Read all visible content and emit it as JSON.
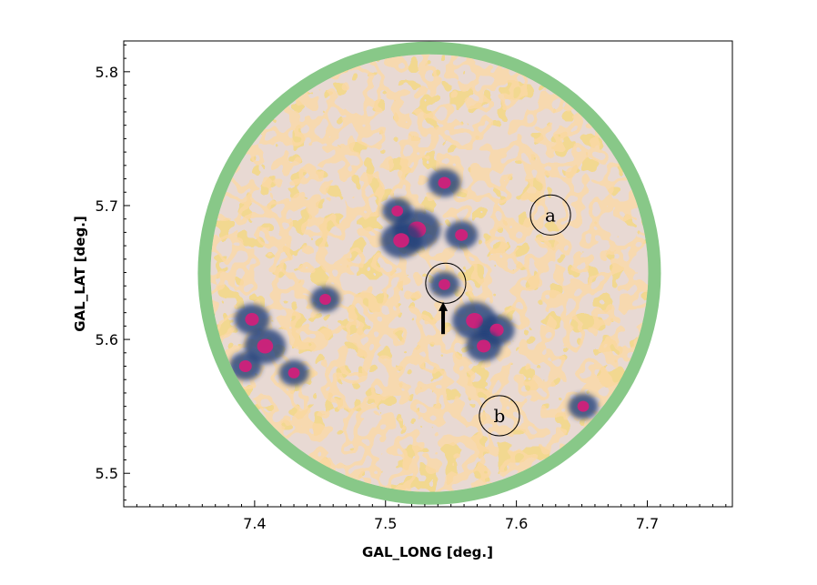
{
  "chart_data": {
    "type": "heatmap",
    "title": "",
    "xlabel": "GAL_LONG [deg.]",
    "ylabel": "GAL_LAT [deg.]",
    "xlim": [
      7.3,
      7.765
    ],
    "ylim": [
      5.475,
      5.823
    ],
    "x_ticks": [
      7.4,
      7.5,
      7.6,
      7.7
    ],
    "x_tick_labels": [
      "7.4",
      "7.5",
      "7.6",
      "7.7"
    ],
    "y_ticks": [
      5.5,
      5.6,
      5.7,
      5.8
    ],
    "y_tick_labels": [
      "5.5",
      "5.6",
      "5.7",
      "5.8"
    ],
    "map_center": [
      7.5335,
      5.6495
    ],
    "map_radius_deg": 0.173,
    "grid": false,
    "colors": {
      "rim": "#88c888",
      "background": "#f2d890",
      "low": "#c8b2d2",
      "mid": "#f5b060",
      "high": "#23407a",
      "peak": "#d0207a"
    },
    "peaks": [
      {
        "x": 7.524,
        "y": 5.682,
        "size": 1.0
      },
      {
        "x": 7.512,
        "y": 5.674,
        "size": 0.8
      },
      {
        "x": 7.558,
        "y": 5.678,
        "size": 0.5
      },
      {
        "x": 7.545,
        "y": 5.641,
        "size": 0.4
      },
      {
        "x": 7.568,
        "y": 5.614,
        "size": 0.9
      },
      {
        "x": 7.585,
        "y": 5.607,
        "size": 0.6
      },
      {
        "x": 7.575,
        "y": 5.595,
        "size": 0.6
      },
      {
        "x": 7.398,
        "y": 5.615,
        "size": 0.6
      },
      {
        "x": 7.408,
        "y": 5.595,
        "size": 0.8
      },
      {
        "x": 7.393,
        "y": 5.58,
        "size": 0.5
      },
      {
        "x": 7.43,
        "y": 5.575,
        "size": 0.4
      },
      {
        "x": 7.454,
        "y": 5.63,
        "size": 0.4
      },
      {
        "x": 7.545,
        "y": 5.717,
        "size": 0.5
      },
      {
        "x": 7.509,
        "y": 5.696,
        "size": 0.4
      },
      {
        "x": 7.651,
        "y": 5.55,
        "size": 0.4
      }
    ],
    "annotations": [
      {
        "type": "circle",
        "x": 7.546,
        "y": 5.642,
        "radius_deg": 0.015,
        "label": ""
      },
      {
        "type": "circle",
        "x": 7.626,
        "y": 5.693,
        "radius_deg": 0.015,
        "label": "a"
      },
      {
        "type": "circle",
        "x": 7.587,
        "y": 5.543,
        "radius_deg": 0.015,
        "label": "b"
      },
      {
        "type": "arrow",
        "x": 7.544,
        "y_from": 5.604,
        "y_to": 5.628,
        "label": ""
      }
    ]
  }
}
